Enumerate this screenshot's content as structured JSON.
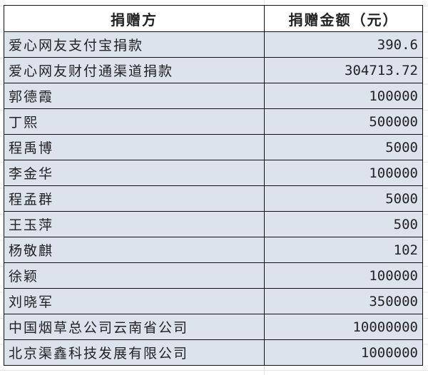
{
  "table": {
    "headers": [
      "捐赠方",
      "捐赠金额（元）"
    ],
    "rows": [
      {
        "donor": "爱心网友支付宝捐款",
        "amount": "390.6"
      },
      {
        "donor": "爱心网友财付通渠道捐款",
        "amount": "304713.72"
      },
      {
        "donor": "郭德霞",
        "amount": "100000"
      },
      {
        "donor": "丁熙",
        "amount": "500000"
      },
      {
        "donor": "程禹博",
        "amount": "5000"
      },
      {
        "donor": "李金华",
        "amount": "100000"
      },
      {
        "donor": "程孟群",
        "amount": "5000"
      },
      {
        "donor": "王玉萍",
        "amount": "500"
      },
      {
        "donor": "杨敬麒",
        "amount": "102"
      },
      {
        "donor": "徐颖",
        "amount": "100000"
      },
      {
        "donor": "刘晓军",
        "amount": "350000"
      },
      {
        "donor": "中国烟草总公司云南省公司",
        "amount": "10000000"
      },
      {
        "donor": "北京渠鑫科技发展有限公司",
        "amount": "1000000"
      }
    ]
  },
  "colors": {
    "row_bg": "#dce3ec",
    "header_bg": "#ffffff",
    "border": "#111111"
  }
}
